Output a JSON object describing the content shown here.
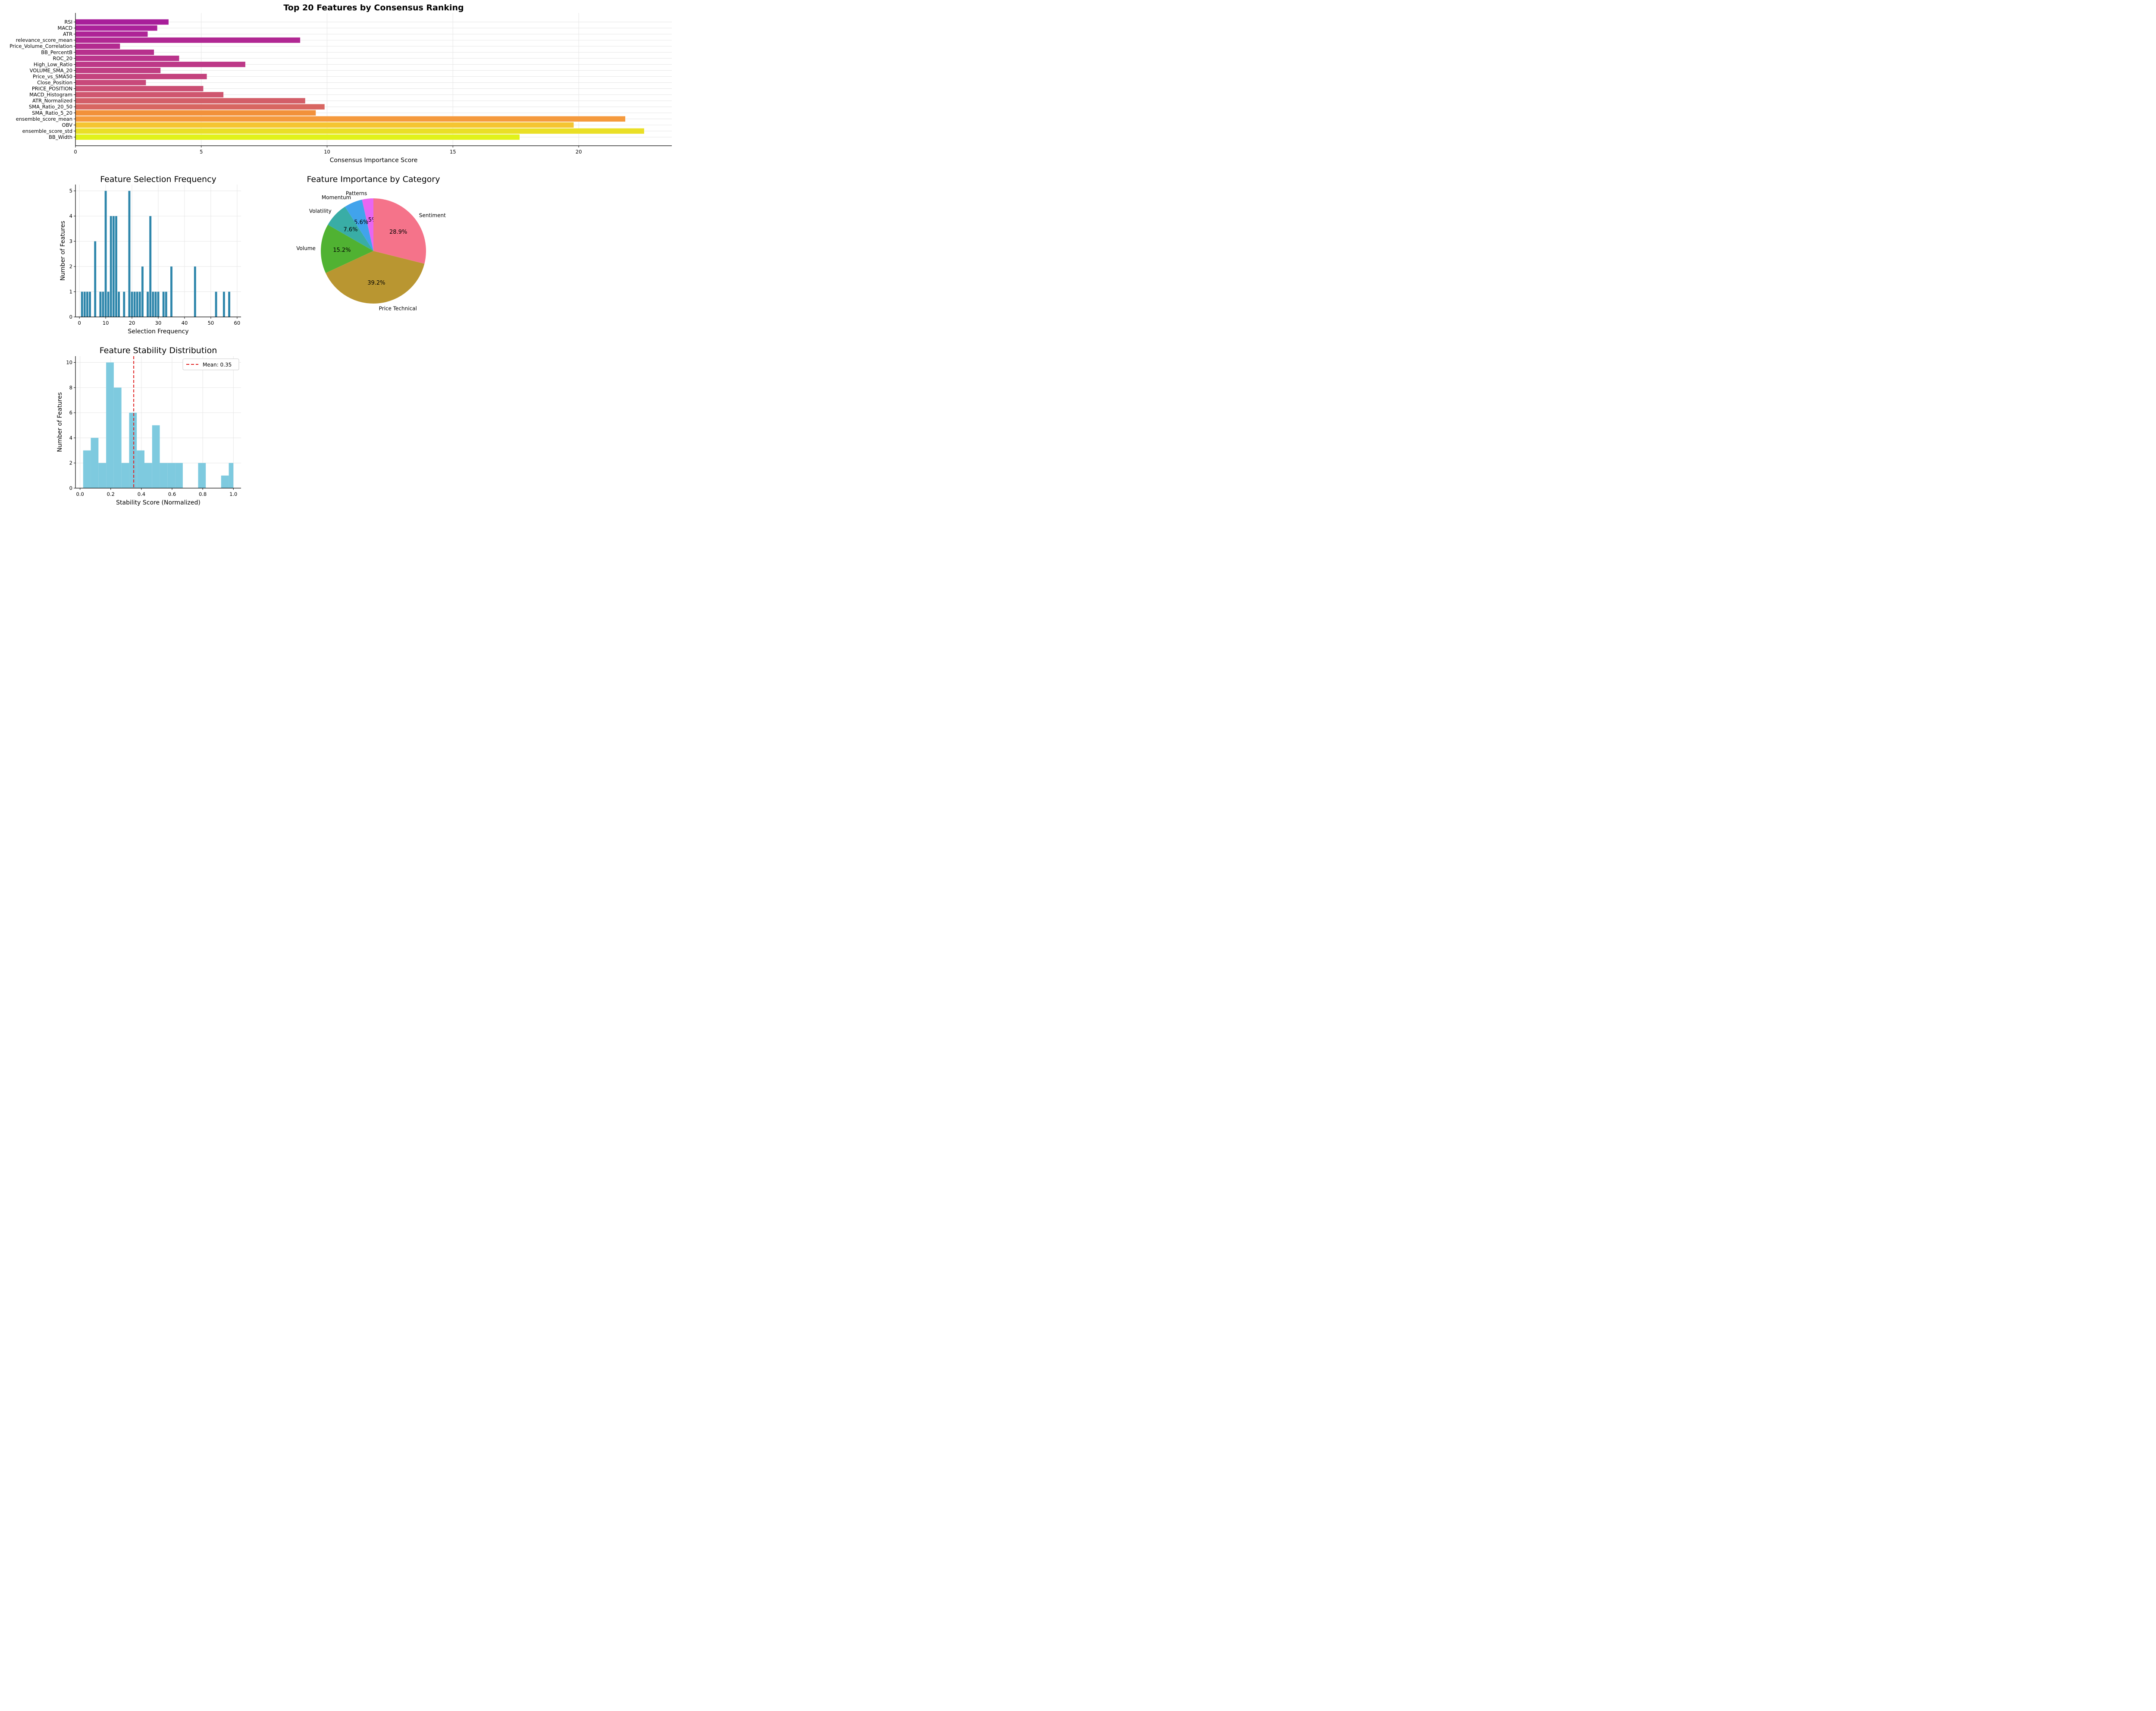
{
  "chart_data": [
    {
      "type": "bar",
      "orientation": "horizontal",
      "title": "Top 20 Features by Consensus Ranking",
      "xlabel": "Consensus Importance Score",
      "ylabel": "",
      "xlim": [
        0,
        23.7
      ],
      "xticks": [
        0,
        5,
        10,
        15,
        20
      ],
      "grid": true,
      "categories": [
        "RSI",
        "MACD",
        "ATR",
        "relevance_score_mean",
        "Price_Volume_Correlation",
        "BB_PercentB",
        "ROC_20",
        "High_Low_Ratio",
        "VOLUME_SMA_20",
        "Price_vs_SMA50",
        "Close_Position",
        "PRICE_POSITION",
        "MACD_Histogram",
        "ATR_Normalized",
        "SMA_Ratio_20_50",
        "SMA_Ratio_5_20",
        "ensemble_score_mean",
        "OBV",
        "ensemble_score_std",
        "BB_Width"
      ],
      "values": [
        3.7,
        3.25,
        2.87,
        8.93,
        1.77,
        3.12,
        4.12,
        6.75,
        3.38,
        5.22,
        2.8,
        5.08,
        5.88,
        9.13,
        9.9,
        9.55,
        21.85,
        19.8,
        22.6,
        17.65
      ],
      "colors": [
        "#a81e9a",
        "#ab219a",
        "#ae2497",
        "#b12893",
        "#b32b90",
        "#b7308d",
        "#ba348b",
        "#bd3988",
        "#c03e83",
        "#c4437e",
        "#c8497a",
        "#cb4f74",
        "#cf566f",
        "#d35e68",
        "#d86661",
        "#f2913a",
        "#f59a3d",
        "#f5c531",
        "#eadf26",
        "#e1f21a"
      ]
    },
    {
      "type": "bar",
      "title": "Feature Selection Frequency",
      "xlabel": "Selection Frequency",
      "ylabel": "Number of Features",
      "xlim": [
        -1.5,
        61.5
      ],
      "ylim": [
        0,
        5.25
      ],
      "xticks": [
        0,
        10,
        20,
        30,
        40,
        50,
        60
      ],
      "yticks": [
        0,
        1,
        2,
        3,
        4,
        5
      ],
      "grid": true,
      "color": "#2e86ab",
      "x": [
        1,
        2,
        3,
        4,
        6,
        8,
        9,
        10,
        11,
        12,
        13,
        14,
        15,
        17,
        19,
        20,
        21,
        22,
        23,
        24,
        26,
        27,
        28,
        29,
        30,
        32,
        33,
        35,
        44,
        52,
        55,
        57
      ],
      "values": [
        1,
        1,
        1,
        1,
        3,
        1,
        1,
        5,
        1,
        4,
        4,
        4,
        1,
        1,
        5,
        1,
        1,
        1,
        1,
        2,
        1,
        4,
        1,
        1,
        1,
        1,
        1,
        2,
        2,
        1,
        1,
        1
      ]
    },
    {
      "type": "pie",
      "title": "Feature Importance by Category",
      "slices": [
        {
          "label": "Patterns",
          "pct_label": "3.5%",
          "value": 3.5,
          "color": "#e866f2"
        },
        {
          "label": "Momentum",
          "pct_label": "5.6%",
          "value": 5.6,
          "color": "#41a3ec"
        },
        {
          "label": "Volatility",
          "pct_label": "7.6%",
          "value": 7.6,
          "color": "#39ada6"
        },
        {
          "label": "Volume",
          "pct_label": "15.2%",
          "value": 15.2,
          "color": "#50b232"
        },
        {
          "label": "Price Technical",
          "pct_label": "39.2%",
          "value": 39.2,
          "color": "#b99631"
        },
        {
          "label": "Sentiment",
          "pct_label": "28.9%",
          "value": 28.9,
          "color": "#f5738a"
        }
      ]
    },
    {
      "type": "histogram",
      "title": "Feature Stability Distribution",
      "xlabel": "Stability Score (Normalized)",
      "ylabel": "Number of Features",
      "xlim": [
        -0.03,
        1.05
      ],
      "ylim": [
        0,
        10.5
      ],
      "xticks": [
        0.0,
        0.2,
        0.4,
        0.6,
        0.8,
        1.0
      ],
      "yticks": [
        0,
        2,
        4,
        6,
        8,
        10
      ],
      "grid": true,
      "color": "#7ecadf",
      "bin_edges": [
        0.02,
        0.07,
        0.12,
        0.17,
        0.22,
        0.27,
        0.32,
        0.37,
        0.42,
        0.47,
        0.52,
        0.57,
        0.62,
        0.67,
        0.72,
        0.77,
        0.82,
        0.87,
        0.92,
        0.97,
        1.0
      ],
      "counts": [
        3,
        4,
        2,
        10,
        8,
        2,
        6,
        3,
        2,
        5,
        2,
        2,
        2,
        0,
        0,
        2,
        0,
        0,
        1,
        2
      ],
      "mean_line": {
        "value": 0.35,
        "color": "#e02020",
        "legend": "Mean: 0.35"
      }
    }
  ]
}
